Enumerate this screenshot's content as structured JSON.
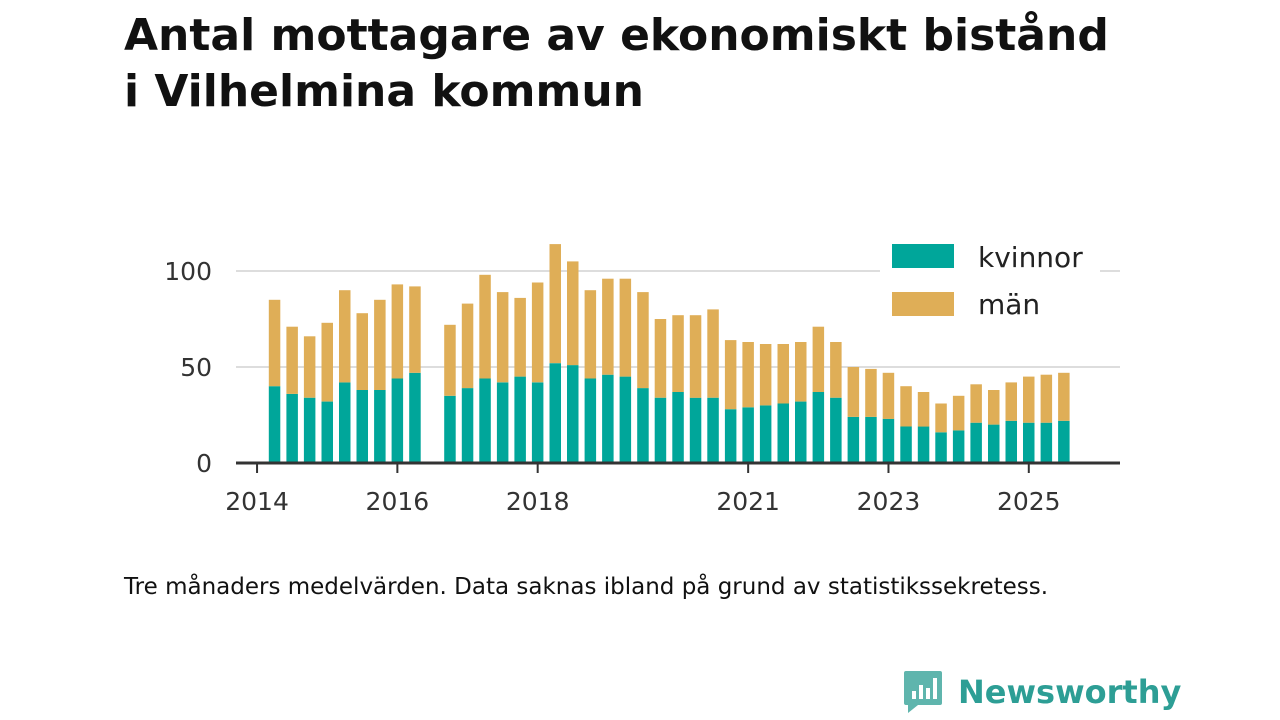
{
  "title_line1": "Antal mottagare av ekonomiskt bistånd",
  "title_line2": "i Vilhelmina kommun",
  "note": "Tre månaders medelvärden. Data saknas ibland på grund av statistikssekretess.",
  "brand": {
    "name": "Newsworthy",
    "icon": "newsworthy-logo-icon"
  },
  "colors": {
    "kvinnor": "#00a69a",
    "man": "#dfae57",
    "grid": "#dddddd",
    "axis": "#333333"
  },
  "chart_data": {
    "type": "bar",
    "stacked": true,
    "title": "Antal mottagare av ekonomiskt bistånd i Vilhelmina kommun",
    "xlabel": "",
    "ylabel": "",
    "ylim": [
      0,
      120
    ],
    "yticks": [
      0,
      50,
      100
    ],
    "grid": true,
    "legend_position": "top-right",
    "xlim": [
      2013.7,
      2026.3
    ],
    "xticks": [
      "2014",
      "2016",
      "2018",
      "2021",
      "2023",
      "2025"
    ],
    "x": [
      2014.25,
      2014.5,
      2014.75,
      2015.0,
      2015.25,
      2015.5,
      2015.75,
      2016.0,
      2016.25,
      2016.75,
      2017.0,
      2017.25,
      2017.5,
      2017.75,
      2018.0,
      2018.25,
      2018.5,
      2018.75,
      2019.0,
      2019.25,
      2019.5,
      2019.75,
      2020.0,
      2020.25,
      2020.5,
      2020.75,
      2021.0,
      2021.25,
      2021.5,
      2021.75,
      2022.0,
      2022.25,
      2022.5,
      2022.75,
      2023.0,
      2023.25,
      2023.5,
      2023.75,
      2024.0,
      2024.25,
      2024.5,
      2024.75,
      2025.0,
      2025.25,
      2025.5
    ],
    "series": [
      {
        "name": "kvinnor",
        "values": [
          40,
          36,
          34,
          32,
          42,
          38,
          38,
          44,
          47,
          35,
          39,
          44,
          42,
          45,
          42,
          52,
          51,
          44,
          46,
          45,
          39,
          34,
          37,
          34,
          34,
          28,
          29,
          30,
          31,
          32,
          37,
          34,
          24,
          24,
          23,
          19,
          19,
          16,
          17,
          21,
          20,
          22,
          21,
          21,
          22
        ]
      },
      {
        "name": "män",
        "values": [
          45,
          35,
          32,
          41,
          48,
          40,
          47,
          49,
          45,
          37,
          44,
          54,
          47,
          41,
          52,
          62,
          54,
          46,
          50,
          51,
          50,
          41,
          40,
          43,
          46,
          36,
          34,
          32,
          31,
          31,
          34,
          29,
          26,
          25,
          24,
          21,
          18,
          15,
          18,
          20,
          18,
          20,
          24,
          25,
          25
        ]
      }
    ]
  }
}
